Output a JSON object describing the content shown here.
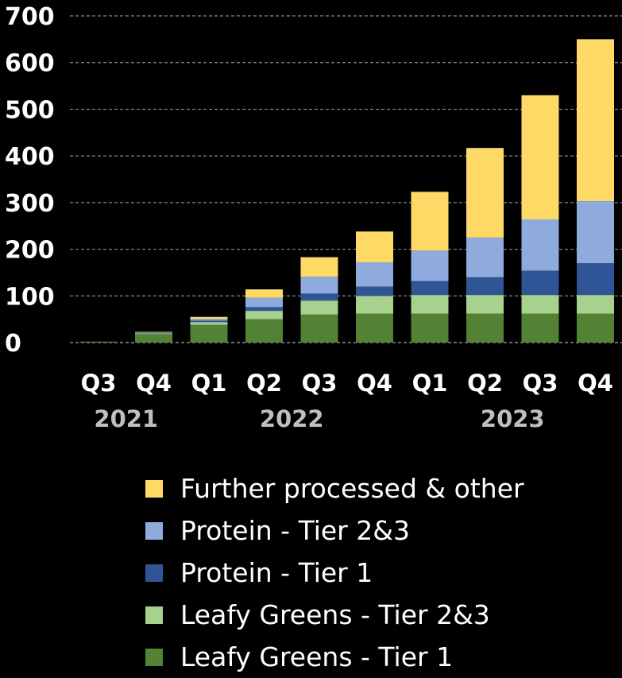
{
  "chart_data": {
    "type": "bar",
    "stacked": true,
    "categories": [
      "Q3",
      "Q4",
      "Q1",
      "Q2",
      "Q3",
      "Q4",
      "Q1",
      "Q2",
      "Q3",
      "Q4"
    ],
    "year_groups": [
      {
        "label": "2021",
        "from": 0,
        "to": 1
      },
      {
        "label": "2022",
        "from": 2,
        "to": 5
      },
      {
        "label": "2023",
        "from": 6,
        "to": 9
      }
    ],
    "series": [
      {
        "name": "Leafy Greens - Tier 1",
        "color": "#548235",
        "values": [
          2,
          18,
          38,
          50,
          60,
          62,
          62,
          62,
          62,
          62
        ]
      },
      {
        "name": "Leafy Greens - Tier 2&3",
        "color": "#a9d18e",
        "values": [
          0,
          2,
          6,
          18,
          30,
          38,
          40,
          40,
          40,
          40
        ]
      },
      {
        "name": "Protein - Tier 1",
        "color": "#2f5597",
        "values": [
          0,
          1,
          3,
          8,
          15,
          20,
          30,
          38,
          52,
          68
        ]
      },
      {
        "name": "Protein - Tier 2&3",
        "color": "#8faadc",
        "values": [
          0,
          1,
          4,
          20,
          36,
          52,
          65,
          85,
          110,
          133
        ]
      },
      {
        "name": "Further processed & other",
        "color": "#ffd966",
        "values": [
          0,
          1,
          4,
          18,
          42,
          66,
          126,
          192,
          266,
          347
        ]
      }
    ],
    "legend_order": [
      "Further processed & other",
      "Protein - Tier 2&3",
      "Protein - Tier 1",
      "Leafy Greens - Tier 2&3",
      "Leafy Greens - Tier 1"
    ],
    "ylim": [
      0,
      700
    ],
    "yticks": [
      0,
      100,
      200,
      300,
      400,
      500,
      600,
      700
    ],
    "grid": "horizontal dashed",
    "legend_position": "bottom"
  }
}
